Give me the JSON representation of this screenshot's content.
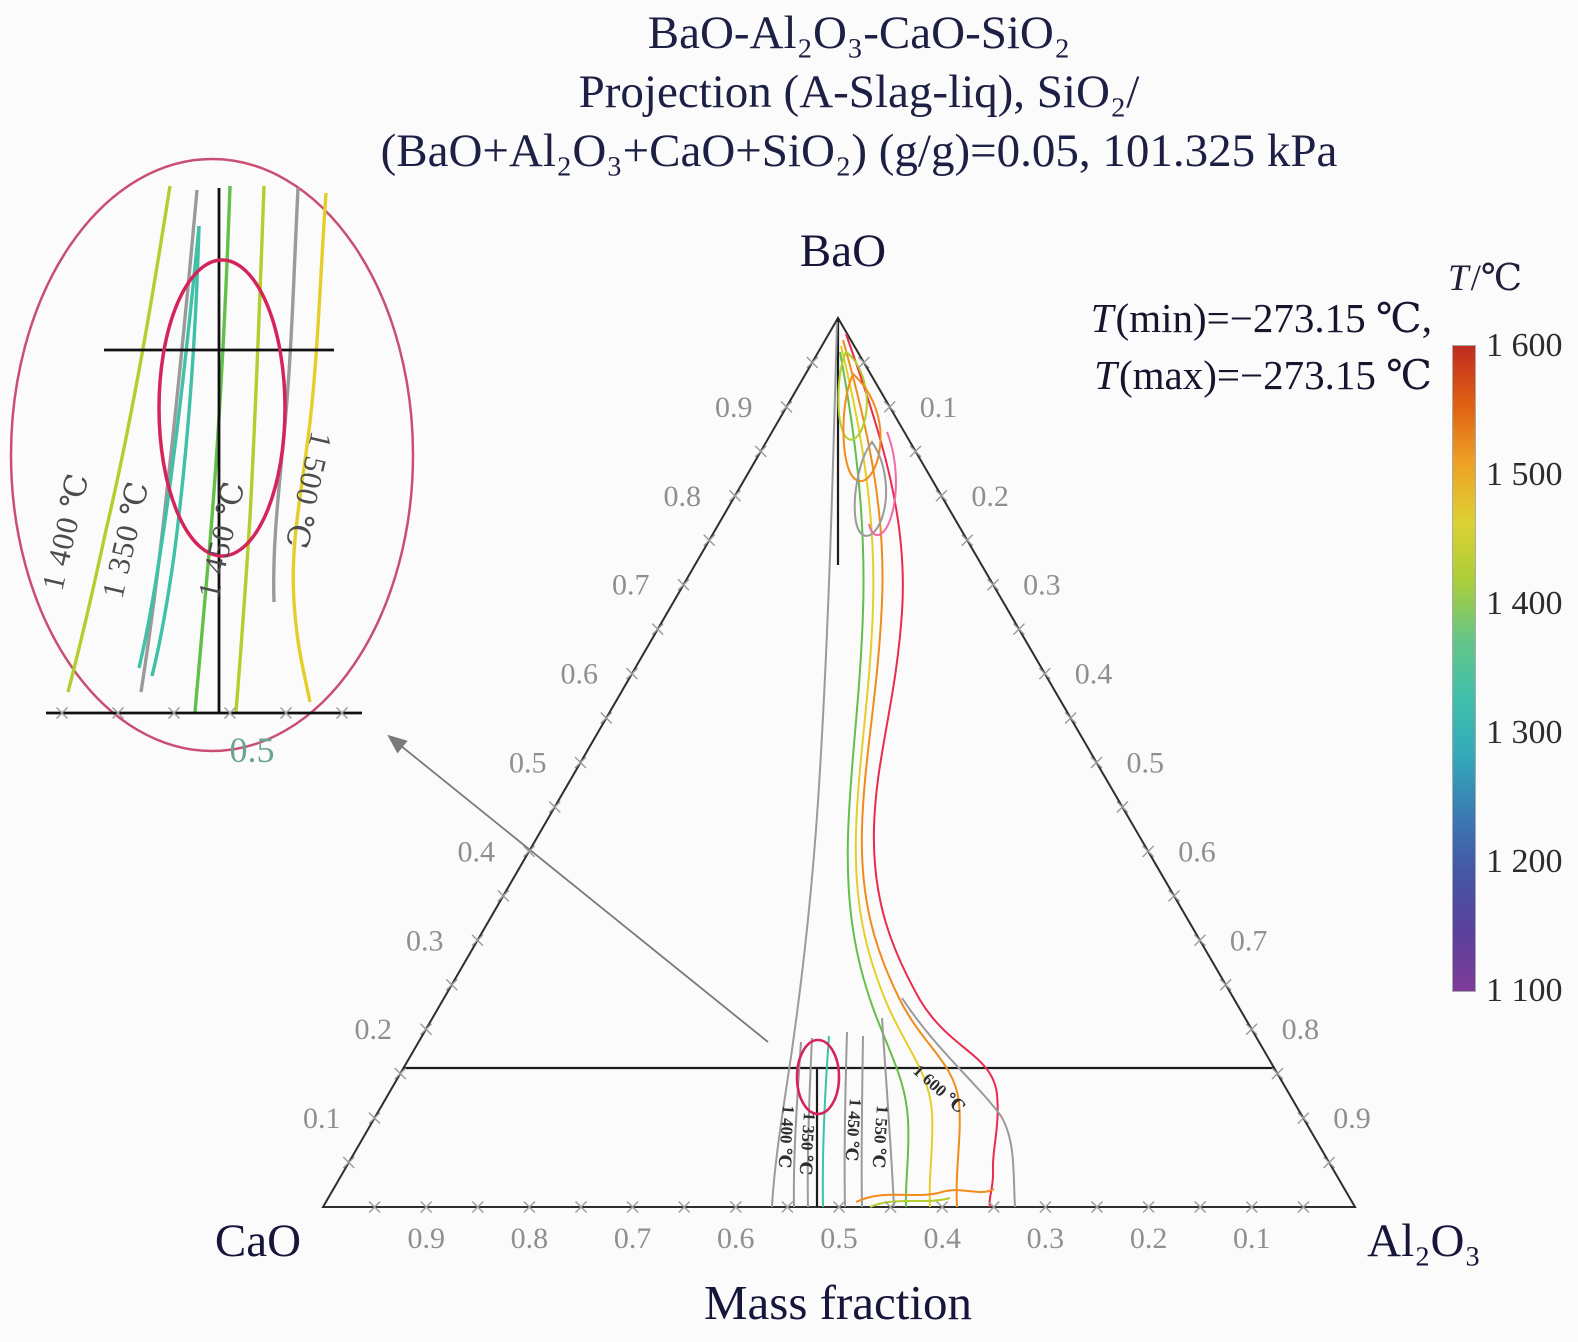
{
  "title": {
    "line1": "BaO-Al₂O₃-CaO-SiO₂",
    "line2": "Projection (A-Slag-liq), SiO₂/",
    "line3": "(BaO+Al₂O₃+CaO+SiO₂) (g/g)=0.05, 101.325 kPa"
  },
  "annotation": {
    "line1": {
      "prefix": "T",
      "rest": "(min)=−273.15 ℃,"
    },
    "line2": {
      "prefix": "T",
      "rest": "(max)=−273.15 ℃"
    }
  },
  "chart_data": {
    "type": "ternary-contour",
    "system": "BaO-Al₂O₃-CaO-SiO₂",
    "projection": "Projection (A-Slag-liq)",
    "condition": "SiO₂/(BaO+Al₂O₃+CaO+SiO₂) (g/g)=0.05",
    "pressure": "101.325 kPa",
    "temperature_min_c": -273.15,
    "temperature_max_c": -273.15,
    "vertices": {
      "top": "BaO",
      "left": "CaO",
      "right": "Al₂O₃"
    },
    "axis_label": "Mass fraction",
    "axes": {
      "left": [
        "0.1",
        "0.2",
        "0.3",
        "0.4",
        "0.5",
        "0.6",
        "0.7",
        "0.8",
        "0.9"
      ],
      "right": [
        "0.1",
        "0.2",
        "0.3",
        "0.4",
        "0.5",
        "0.6",
        "0.7",
        "0.8",
        "0.9"
      ],
      "bottom": [
        "0.1",
        "0.2",
        "0.3",
        "0.4",
        "0.5",
        "0.6",
        "0.7",
        "0.8",
        "0.9"
      ]
    },
    "contour_levels_c": [
      1350,
      1400,
      1450,
      1500,
      1550,
      1600
    ],
    "contour_labels": [
      "1 400 ℃",
      "1 350 ℃",
      "1 450 ℃",
      "1 550 ℃",
      "1 600 ℃"
    ],
    "colorbar": {
      "title_prefix": "T",
      "title_rest": "/℃",
      "ticks": [
        "1 600",
        "1 500",
        "1 400",
        "1 300",
        "1 200",
        "1 100"
      ],
      "range_c": [
        1100,
        1600
      ],
      "gradient": [
        "#bf2b20",
        "#e06012",
        "#eda224",
        "#dcd133",
        "#abce38",
        "#66c587",
        "#3fc0ab",
        "#33a9ba",
        "#3a7ab2",
        "#4556a5",
        "#5b409b",
        "#7d3c98"
      ]
    },
    "inset": {
      "labels": [
        "1 400 ℃",
        "1 350 ℃",
        "1 450 ℃",
        "1 500 ℃"
      ],
      "axis_value": "0.5"
    }
  }
}
